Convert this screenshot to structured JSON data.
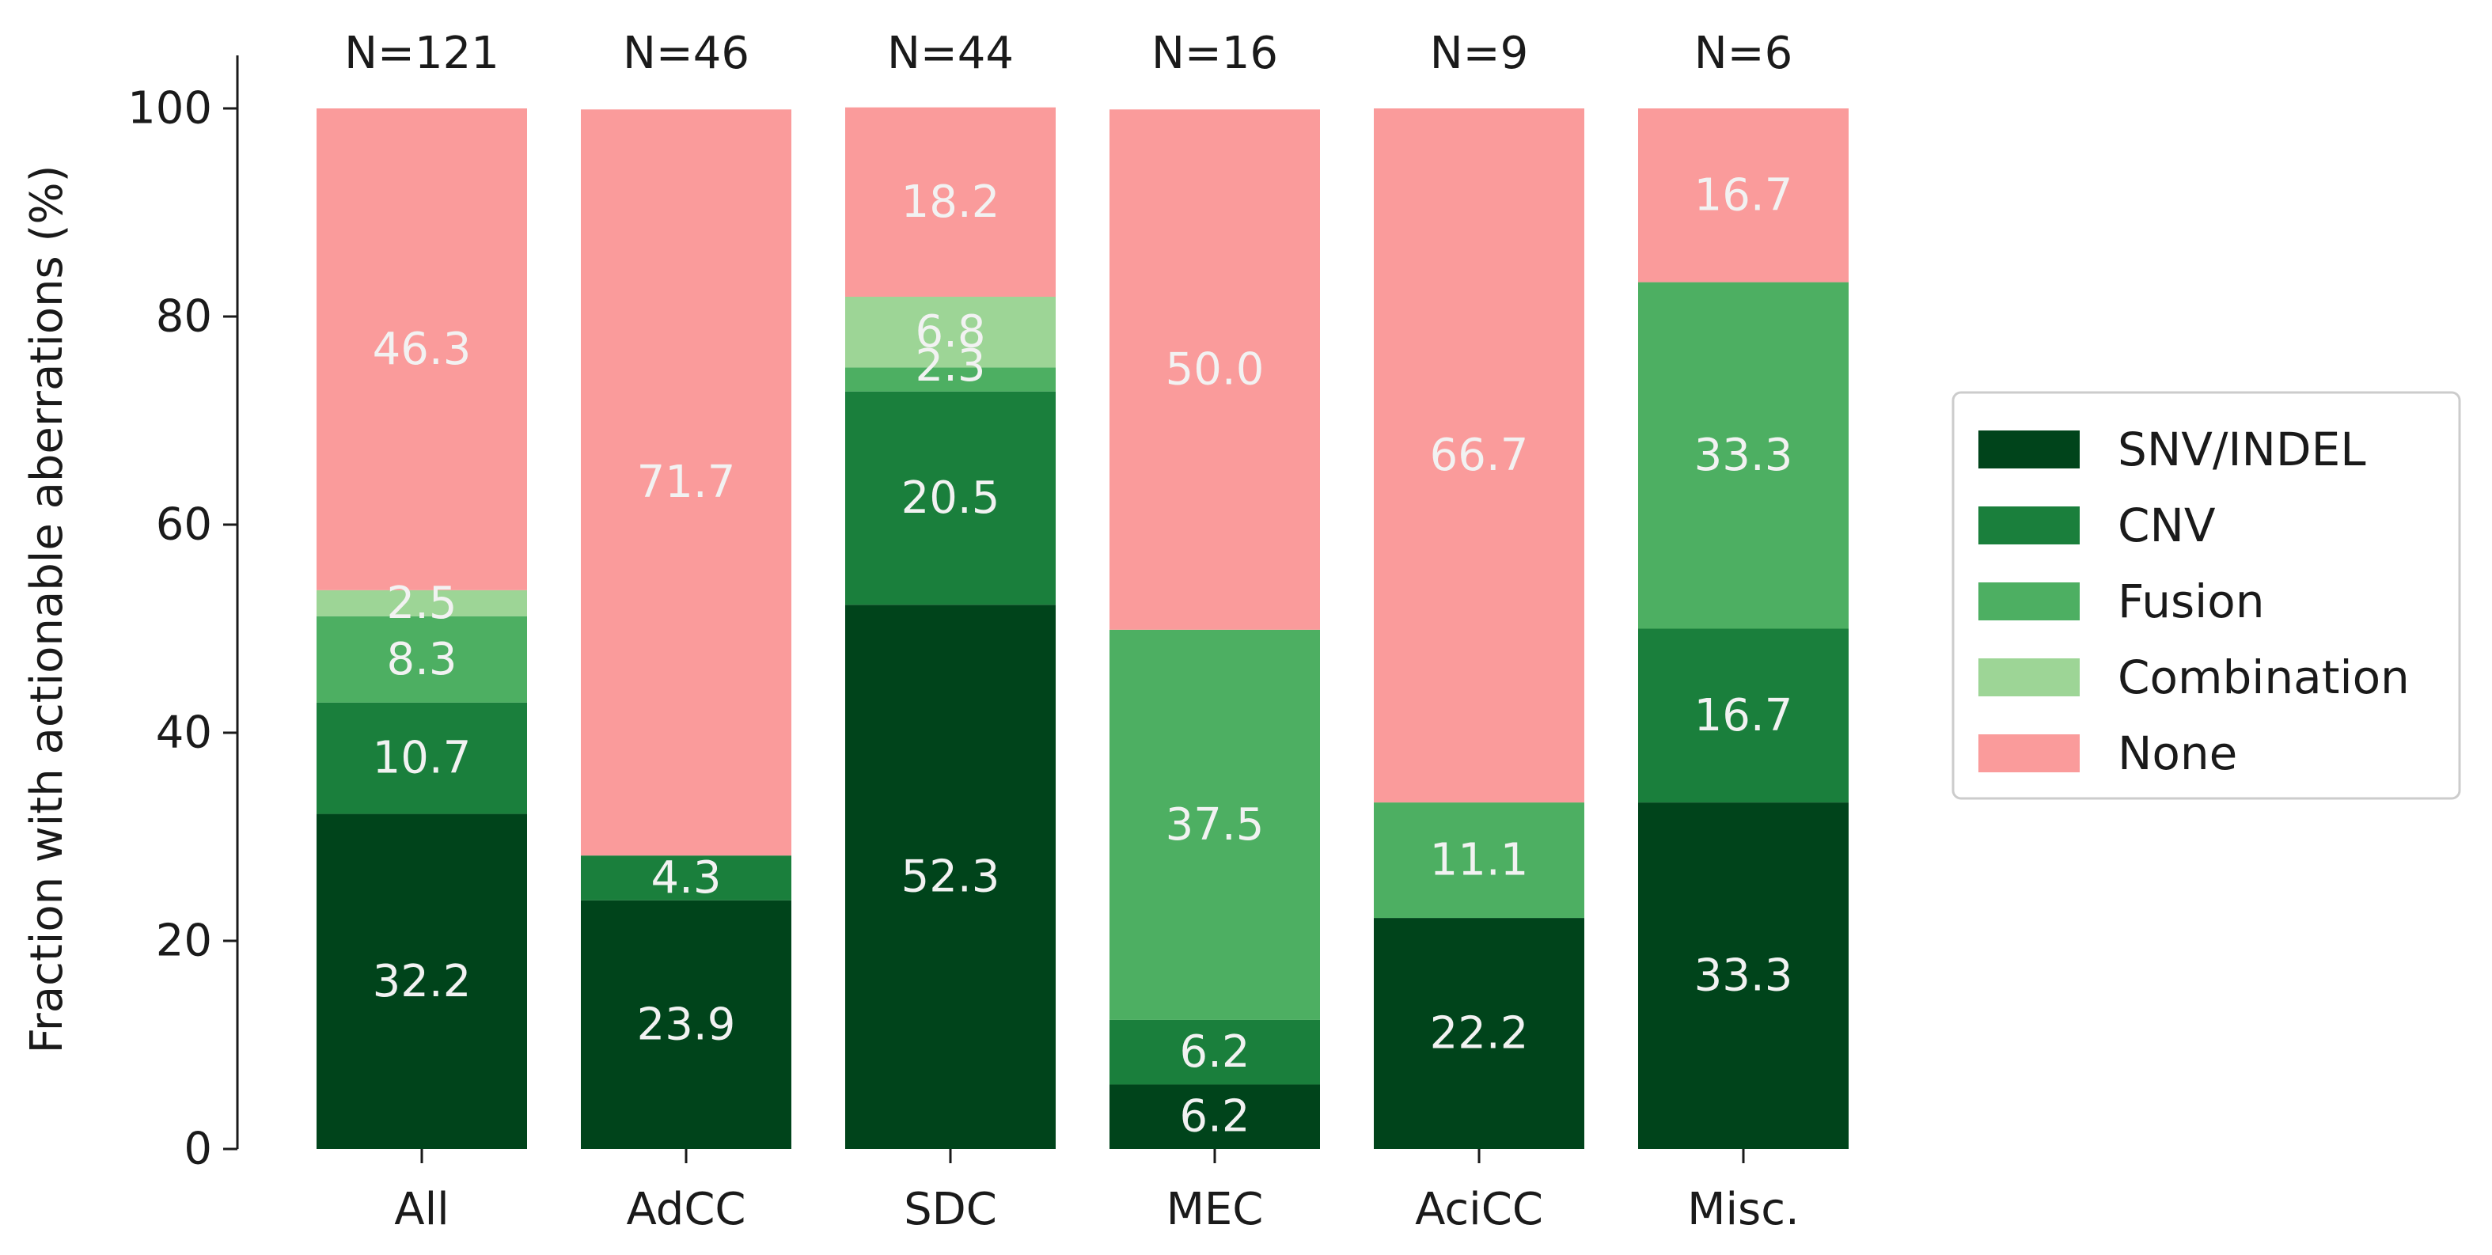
{
  "chart_data": {
    "type": "bar",
    "stacked": true,
    "categories": [
      "All",
      "AdCC",
      "SDC",
      "MEC",
      "AciCC",
      "Misc."
    ],
    "counts": [
      "N=121",
      "N=46",
      "N=44",
      "N=16",
      "N=9",
      "N=6"
    ],
    "series": [
      {
        "name": "SNV/INDEL",
        "color": "#00441b",
        "values": [
          32.2,
          23.9,
          52.3,
          6.2,
          22.2,
          33.3
        ]
      },
      {
        "name": "CNV",
        "color": "#1a7f3c",
        "values": [
          10.7,
          4.3,
          20.5,
          6.2,
          0,
          16.7
        ]
      },
      {
        "name": "Fusion",
        "color": "#4daf62",
        "values": [
          8.3,
          0,
          2.3,
          37.5,
          11.1,
          33.3
        ]
      },
      {
        "name": "Combination",
        "color": "#9dd596",
        "values": [
          2.5,
          0,
          6.8,
          0,
          0,
          0
        ]
      },
      {
        "name": "None",
        "color": "#fa9b9b",
        "values": [
          46.3,
          71.7,
          18.2,
          50.0,
          66.7,
          16.7
        ]
      }
    ],
    "segment_labels": [
      [
        "32.2",
        "10.7",
        "8.3",
        "2.5",
        "46.3"
      ],
      [
        "23.9",
        "4.3",
        "",
        "",
        "71.7"
      ],
      [
        "52.3",
        "20.5",
        "2.3",
        "6.8",
        "18.2"
      ],
      [
        "6.2",
        "6.2",
        "37.5",
        "",
        "50.0"
      ],
      [
        "22.2",
        "",
        "11.1",
        "",
        "66.7"
      ],
      [
        "33.3",
        "16.7",
        "33.3",
        "",
        "16.7"
      ]
    ],
    "title": "",
    "xlabel": "",
    "ylabel": "Fraction with actionable aberrations (%)",
    "ylim": [
      0,
      100
    ],
    "yticks": [
      "0",
      "20",
      "40",
      "60",
      "80",
      "100"
    ],
    "grid": false,
    "legend_position": "right"
  }
}
